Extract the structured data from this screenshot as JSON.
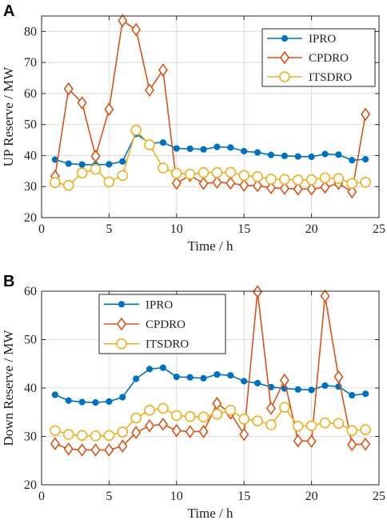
{
  "chart_data": [
    {
      "type": "line",
      "panel_label": "A",
      "xlabel": "Time / h",
      "ylabel": "UP Reserve / MW",
      "xlim": [
        0,
        25
      ],
      "ylim": [
        20,
        85
      ],
      "xticks": [
        0,
        5,
        10,
        15,
        20,
        25
      ],
      "yticks": [
        20,
        30,
        40,
        50,
        60,
        70,
        80
      ],
      "grid": true,
      "legend_position": "top-right",
      "x": [
        1,
        2,
        3,
        4,
        5,
        6,
        7,
        8,
        9,
        10,
        11,
        12,
        13,
        14,
        15,
        16,
        17,
        18,
        19,
        20,
        21,
        22,
        23,
        24
      ],
      "series": [
        {
          "name": "IPRO",
          "color": "#0072BD",
          "marker": "dot",
          "values": [
            38.7,
            37.4,
            37.1,
            37.0,
            37.2,
            38.1,
            47.0,
            44.0,
            44.2,
            42.3,
            42.2,
            42.0,
            42.8,
            42.6,
            41.4,
            41.0,
            40.2,
            39.9,
            39.7,
            39.6,
            40.5,
            40.3,
            38.5,
            38.8
          ]
        },
        {
          "name": "CPDRO",
          "color": "#D95319",
          "marker": "diamond",
          "values": [
            33.3,
            61.5,
            57.0,
            39.8,
            54.9,
            83.5,
            80.6,
            61.1,
            67.6,
            31.1,
            33.6,
            31.0,
            31.4,
            31.1,
            30.4,
            30.3,
            29.6,
            29.4,
            29.2,
            29.2,
            29.8,
            31.0,
            28.3,
            53.3
          ]
        },
        {
          "name": "ITSDRO",
          "color": "#EDB120",
          "marker": "circle",
          "values": [
            31.3,
            30.4,
            34.4,
            35.6,
            31.5,
            33.6,
            48.2,
            43.5,
            36.0,
            34.3,
            34.0,
            34.5,
            34.5,
            34.6,
            33.6,
            33.2,
            32.4,
            32.3,
            32.1,
            32.2,
            32.8,
            32.6,
            31.0,
            31.4
          ]
        }
      ]
    },
    {
      "type": "line",
      "panel_label": "B",
      "xlabel": "Time / h",
      "ylabel": "Down Reserve / MW",
      "xlim": [
        0,
        25
      ],
      "ylim": [
        20,
        60
      ],
      "xticks": [
        0,
        5,
        10,
        15,
        20,
        25
      ],
      "yticks": [
        20,
        30,
        40,
        50,
        60
      ],
      "grid": true,
      "legend_position": "top-left",
      "x": [
        1,
        2,
        3,
        4,
        5,
        6,
        7,
        8,
        9,
        10,
        11,
        12,
        13,
        14,
        15,
        16,
        17,
        18,
        19,
        20,
        21,
        22,
        23,
        24
      ],
      "series": [
        {
          "name": "IPRO",
          "color": "#0072BD",
          "marker": "dot",
          "values": [
            38.6,
            37.4,
            37.1,
            37.0,
            37.2,
            38.1,
            41.9,
            43.9,
            44.2,
            42.3,
            42.2,
            42.0,
            42.8,
            42.6,
            41.4,
            41.0,
            40.2,
            39.9,
            39.7,
            39.6,
            40.5,
            40.3,
            38.5,
            38.8
          ]
        },
        {
          "name": "CPDRO",
          "color": "#D95319",
          "marker": "diamond",
          "values": [
            28.5,
            27.4,
            27.2,
            27.2,
            27.2,
            28.0,
            30.8,
            32.2,
            32.5,
            31.2,
            31.0,
            31.0,
            36.8,
            34.8,
            30.4,
            59.9,
            35.8,
            41.6,
            29.1,
            29.0,
            59.0,
            42.3,
            28.3,
            28.4
          ]
        },
        {
          "name": "ITSDRO",
          "color": "#EDB120",
          "marker": "circle",
          "values": [
            31.2,
            30.4,
            30.2,
            30.1,
            30.2,
            30.9,
            33.8,
            35.4,
            35.8,
            34.3,
            34.1,
            34.0,
            34.6,
            35.4,
            33.6,
            33.2,
            32.4,
            36.0,
            32.1,
            32.2,
            32.8,
            32.7,
            31.2,
            31.4
          ]
        }
      ]
    }
  ]
}
